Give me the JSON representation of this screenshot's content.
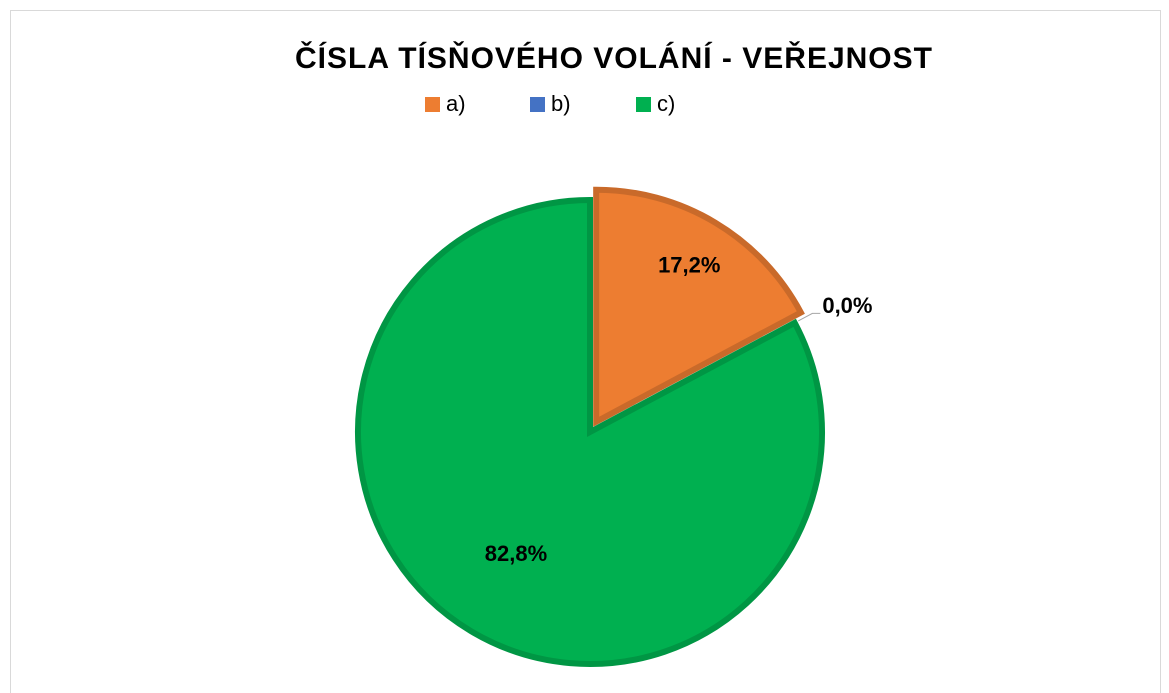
{
  "chart_data": {
    "type": "pie",
    "title": "ČÍSLA TÍSŇOVÉHO VOLÁNÍ - VEŘEJNOST",
    "categories": [
      "a)",
      "b)",
      "c)"
    ],
    "values": [
      17.2,
      0,
      82.8
    ],
    "value_labels": [
      "17,2%",
      "0,0%",
      "82,8%"
    ],
    "colors": [
      "#ed7d31",
      "#4472c4",
      "#00b050"
    ],
    "legend": "top"
  }
}
